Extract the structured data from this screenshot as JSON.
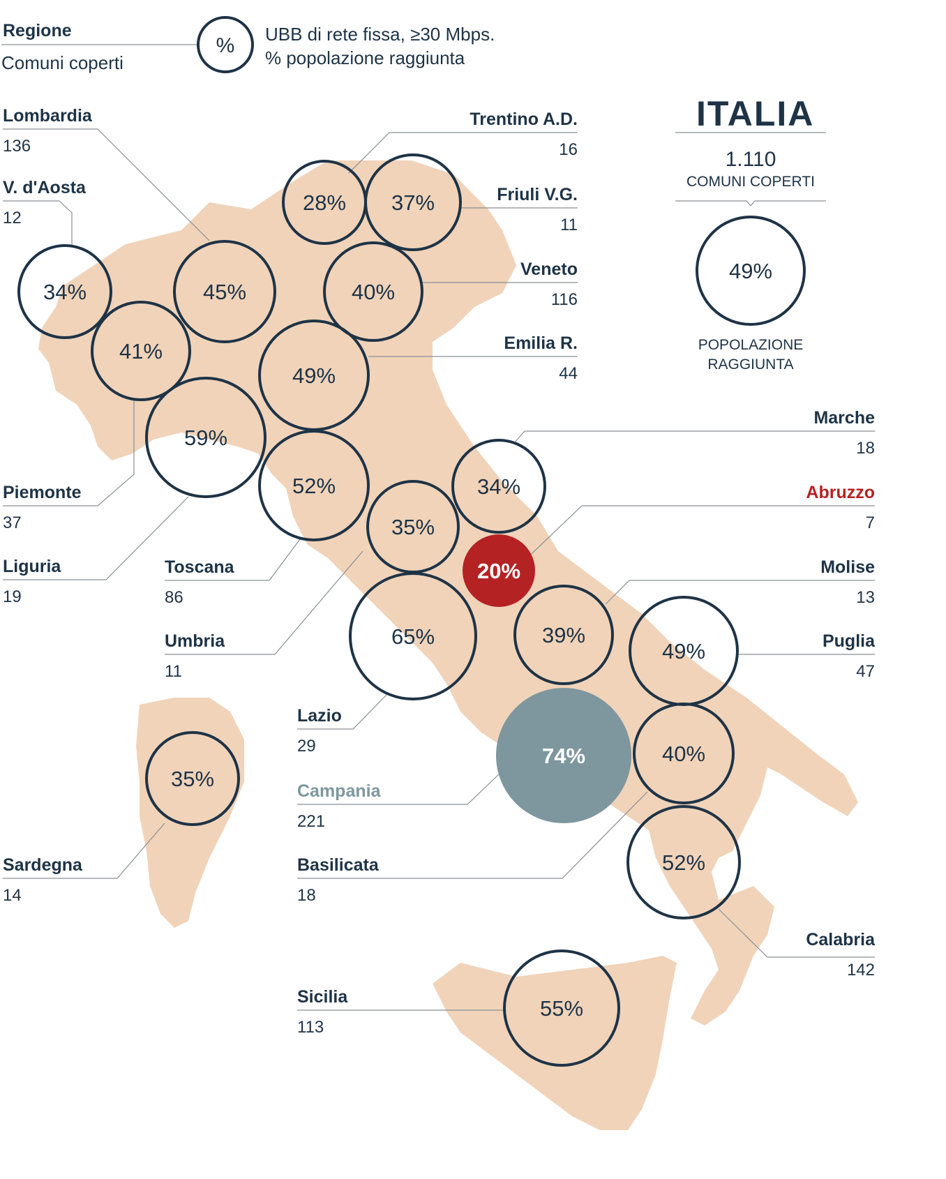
{
  "legend": {
    "region_label": "Regione",
    "count_label": "Comuni coperti",
    "symbol": "%",
    "line1": "UBB di rete fissa, ≥30 Mbps.",
    "line2": "% popolazione raggiunta"
  },
  "national": {
    "title": "ITALIA",
    "count": "1.110",
    "count_label": "COMUNI COPERTI",
    "percent": "49%",
    "percent_label_1": "POPOLAZIONE",
    "percent_label_2": "RAGGIUNTA"
  },
  "colors": {
    "map_fill": "#f0d3b9",
    "ring": "#1e3346",
    "highlight_red": "#b52224",
    "highlight_gray": "#7e979e",
    "text": "#1e3346",
    "leader": "#8a8f94"
  },
  "regions": [
    {
      "key": "lombardia",
      "name": "Lombardia",
      "count": "136",
      "percent": "45%",
      "style": "normal"
    },
    {
      "key": "vaosta",
      "name": "V. d'Aosta",
      "count": "12",
      "percent": "34%",
      "style": "normal"
    },
    {
      "key": "piemonte",
      "name": "Piemonte",
      "count": "37",
      "percent": "41%",
      "style": "normal"
    },
    {
      "key": "liguria",
      "name": "Liguria",
      "count": "19",
      "percent": "59%",
      "style": "normal"
    },
    {
      "key": "toscana",
      "name": "Toscana",
      "count": "86",
      "percent": "52%",
      "style": "normal"
    },
    {
      "key": "umbria",
      "name": "Umbria",
      "count": "11",
      "percent": "35%",
      "style": "normal"
    },
    {
      "key": "lazio",
      "name": "Lazio",
      "count": "29",
      "percent": "65%",
      "style": "normal"
    },
    {
      "key": "campania",
      "name": "Campania",
      "count": "221",
      "percent": "74%",
      "style": "gray"
    },
    {
      "key": "basilicata",
      "name": "Basilicata",
      "count": "18",
      "percent": "40%",
      "style": "normal"
    },
    {
      "key": "sardegna",
      "name": "Sardegna",
      "count": "14",
      "percent": "35%",
      "style": "normal"
    },
    {
      "key": "sicilia",
      "name": "Sicilia",
      "count": "113",
      "percent": "55%",
      "style": "normal"
    },
    {
      "key": "trentino",
      "name": "Trentino A.D.",
      "count": "16",
      "percent": "28%",
      "style": "normal"
    },
    {
      "key": "friuli",
      "name": "Friuli V.G.",
      "count": "11",
      "percent": "37%",
      "style": "normal"
    },
    {
      "key": "veneto",
      "name": "Veneto",
      "count": "116",
      "percent": "40%",
      "style": "normal"
    },
    {
      "key": "emilia",
      "name": "Emilia R.",
      "count": "44",
      "percent": "49%",
      "style": "normal"
    },
    {
      "key": "marche",
      "name": "Marche",
      "count": "18",
      "percent": "34%",
      "style": "normal"
    },
    {
      "key": "abruzzo",
      "name": "Abruzzo",
      "count": "7",
      "percent": "20%",
      "style": "red"
    },
    {
      "key": "molise",
      "name": "Molise",
      "count": "13",
      "percent": "39%",
      "style": "normal"
    },
    {
      "key": "puglia",
      "name": "Puglia",
      "count": "47",
      "percent": "49%",
      "style": "normal"
    },
    {
      "key": "calabria",
      "name": "Calabria",
      "count": "142",
      "percent": "52%",
      "style": "normal"
    }
  ]
}
